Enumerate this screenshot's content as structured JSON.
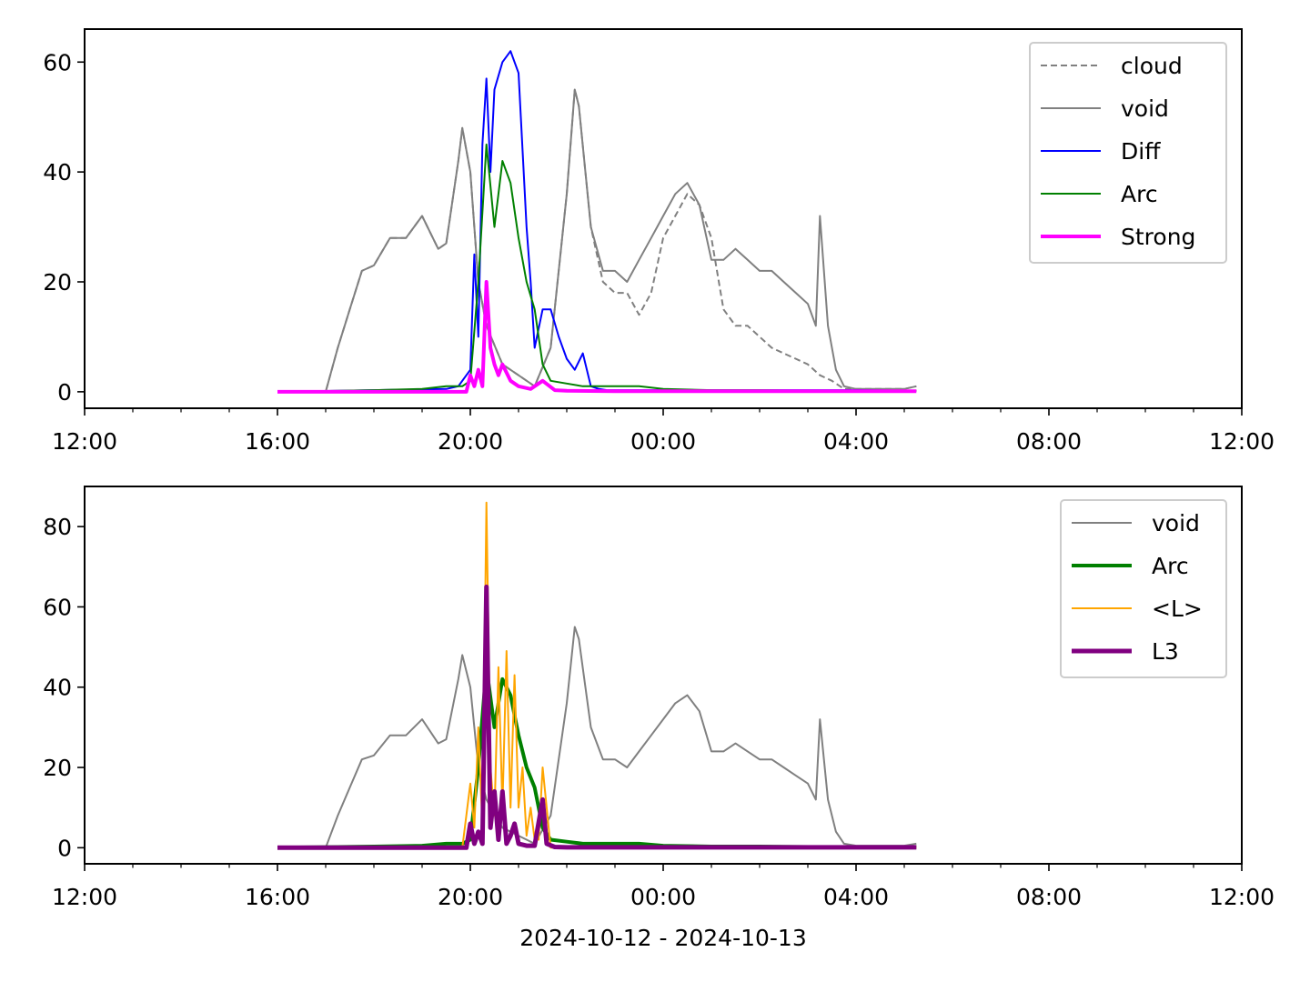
{
  "chart_data": [
    {
      "type": "line",
      "x_axis": {
        "type": "time",
        "range": [
          "2024-10-12T12:00",
          "2024-10-13T12:00"
        ],
        "ticks": [
          "12:00",
          "16:00",
          "20:00",
          "00:00",
          "04:00",
          "08:00",
          "12:00"
        ]
      },
      "y_axis": {
        "ylim": [
          -3,
          66
        ],
        "ticks": [
          "0",
          "20",
          "40",
          "60"
        ]
      },
      "xlabel": "",
      "ylabel": "",
      "grid": false,
      "legend": "top-right",
      "series": [
        {
          "name": "cloud",
          "color": "#808080",
          "style": "dashed",
          "x": [
            "16:00",
            "17:00",
            "17:15",
            "17:30",
            "17:45",
            "18:00",
            "18:20",
            "18:40",
            "19:00",
            "19:20",
            "19:30",
            "19:45",
            "19:50",
            "20:00",
            "20:10",
            "20:20",
            "20:40",
            "21:00",
            "21:20",
            "21:40",
            "22:00",
            "22:10",
            "22:15",
            "22:30",
            "22:45",
            "23:00",
            "23:15",
            "23:30",
            "23:45",
            "00:00",
            "00:15",
            "00:30",
            "00:45",
            "01:00",
            "01:15",
            "01:30",
            "01:45",
            "02:00",
            "02:15",
            "02:30",
            "02:45",
            "03:00",
            "03:15",
            "03:30",
            "03:45",
            "04:00",
            "04:30",
            "05:00",
            "05:15"
          ],
          "y": [
            0,
            0,
            8,
            15,
            22,
            23,
            28,
            28,
            32,
            26,
            27,
            42,
            48,
            40,
            20,
            12,
            5,
            3,
            1,
            8,
            36,
            55,
            52,
            30,
            20,
            18,
            18,
            14,
            18,
            28,
            32,
            36,
            34,
            28,
            15,
            12,
            12,
            10,
            8,
            7,
            6,
            5,
            3,
            2,
            0.5,
            0.5,
            0.5,
            0.5,
            1
          ]
        },
        {
          "name": "void",
          "color": "#808080",
          "style": "solid",
          "x": [
            "16:00",
            "17:00",
            "17:15",
            "17:30",
            "17:45",
            "18:00",
            "18:20",
            "18:40",
            "19:00",
            "19:20",
            "19:30",
            "19:45",
            "19:50",
            "20:00",
            "20:10",
            "20:20",
            "20:40",
            "21:00",
            "21:20",
            "21:40",
            "22:00",
            "22:10",
            "22:15",
            "22:30",
            "22:45",
            "23:00",
            "23:15",
            "23:30",
            "23:45",
            "00:00",
            "00:15",
            "00:30",
            "00:45",
            "01:00",
            "01:15",
            "01:30",
            "01:45",
            "02:00",
            "02:15",
            "02:30",
            "02:45",
            "03:00",
            "03:10",
            "03:15",
            "03:25",
            "03:35",
            "03:45",
            "04:00",
            "04:30",
            "05:00",
            "05:15"
          ],
          "y": [
            0,
            0,
            8,
            15,
            22,
            23,
            28,
            28,
            32,
            26,
            27,
            42,
            48,
            40,
            20,
            12,
            5,
            3,
            1,
            8,
            36,
            55,
            52,
            30,
            22,
            22,
            20,
            24,
            28,
            32,
            36,
            38,
            34,
            24,
            24,
            26,
            24,
            22,
            22,
            20,
            18,
            16,
            12,
            32,
            12,
            4,
            1,
            0.5,
            0.5,
            0.5,
            1
          ]
        },
        {
          "name": "Diff",
          "color": "#0000ff",
          "style": "solid",
          "x": [
            "16:00",
            "19:30",
            "19:45",
            "20:00",
            "20:05",
            "20:10",
            "20:15",
            "20:20",
            "20:25",
            "20:30",
            "20:40",
            "20:50",
            "21:00",
            "21:10",
            "21:15",
            "21:20",
            "21:30",
            "21:40",
            "21:50",
            "22:00",
            "22:10",
            "22:20",
            "22:30",
            "22:40",
            "22:50",
            "23:00",
            "23:30",
            "00:00",
            "01:00",
            "02:00",
            "03:00",
            "04:00",
            "05:15"
          ],
          "y": [
            0,
            0.5,
            1,
            4,
            25,
            10,
            45,
            57,
            40,
            55,
            60,
            62,
            58,
            30,
            20,
            8,
            15,
            15,
            10,
            6,
            4,
            7,
            1,
            0.5,
            0.3,
            0.3,
            0.3,
            0.3,
            0.3,
            0.3,
            0.3,
            0.3,
            0.2
          ]
        },
        {
          "name": "Arc",
          "color": "#008000",
          "style": "solid",
          "x": [
            "16:00",
            "18:00",
            "19:00",
            "19:30",
            "19:50",
            "20:00",
            "20:10",
            "20:20",
            "20:30",
            "20:40",
            "20:50",
            "21:00",
            "21:10",
            "21:20",
            "21:30",
            "21:40",
            "22:00",
            "22:20",
            "22:40",
            "23:00",
            "23:30",
            "00:00",
            "01:00",
            "02:00",
            "03:00",
            "04:00",
            "05:15"
          ],
          "y": [
            0,
            0.3,
            0.5,
            1,
            1,
            2,
            20,
            45,
            30,
            42,
            38,
            28,
            20,
            15,
            5,
            2,
            1.5,
            1,
            1,
            1,
            1,
            0.5,
            0.3,
            0.3,
            0.2,
            0.2,
            0.2
          ]
        },
        {
          "name": "Strong",
          "color": "#ff00ff",
          "style": "solid",
          "x": [
            "16:00",
            "19:55",
            "20:00",
            "20:05",
            "20:10",
            "20:15",
            "20:20",
            "20:25",
            "20:30",
            "20:35",
            "20:40",
            "20:50",
            "21:00",
            "21:15",
            "21:30",
            "21:45",
            "22:00",
            "23:00",
            "00:00",
            "02:00",
            "04:00",
            "05:15"
          ],
          "y": [
            0,
            0,
            3,
            1,
            4,
            1,
            20,
            8,
            5,
            3,
            5,
            2,
            1,
            0.5,
            2,
            0.3,
            0.2,
            0.1,
            0.1,
            0.1,
            0.1,
            0.1
          ]
        }
      ]
    },
    {
      "type": "line",
      "x_axis": {
        "type": "time",
        "range": [
          "2024-10-12T12:00",
          "2024-10-13T12:00"
        ],
        "ticks": [
          "12:00",
          "16:00",
          "20:00",
          "00:00",
          "04:00",
          "08:00",
          "12:00"
        ]
      },
      "y_axis": {
        "ylim": [
          -4,
          90
        ],
        "ticks": [
          "0",
          "20",
          "40",
          "60",
          "80"
        ]
      },
      "xlabel": "2024-10-12 - 2024-10-13",
      "ylabel": "",
      "grid": false,
      "legend": "top-right",
      "series": [
        {
          "name": "void",
          "color": "#808080",
          "style": "solid",
          "x": [
            "16:00",
            "17:00",
            "17:15",
            "17:30",
            "17:45",
            "18:00",
            "18:20",
            "18:40",
            "19:00",
            "19:20",
            "19:30",
            "19:45",
            "19:50",
            "20:00",
            "20:10",
            "20:20",
            "20:40",
            "21:00",
            "21:20",
            "21:40",
            "22:00",
            "22:10",
            "22:15",
            "22:30",
            "22:45",
            "23:00",
            "23:15",
            "23:30",
            "23:45",
            "00:00",
            "00:15",
            "00:30",
            "00:45",
            "01:00",
            "01:15",
            "01:30",
            "01:45",
            "02:00",
            "02:15",
            "02:30",
            "02:45",
            "03:00",
            "03:10",
            "03:15",
            "03:25",
            "03:35",
            "03:45",
            "04:00",
            "04:30",
            "05:00",
            "05:15"
          ],
          "y": [
            0,
            0,
            8,
            15,
            22,
            23,
            28,
            28,
            32,
            26,
            27,
            42,
            48,
            40,
            20,
            12,
            5,
            3,
            1,
            8,
            36,
            55,
            52,
            30,
            22,
            22,
            20,
            24,
            28,
            32,
            36,
            38,
            34,
            24,
            24,
            26,
            24,
            22,
            22,
            20,
            18,
            16,
            12,
            32,
            12,
            4,
            1,
            0.5,
            0.5,
            0.5,
            1
          ]
        },
        {
          "name": "Arc",
          "color": "#008000",
          "style": "solid",
          "x": [
            "16:00",
            "18:00",
            "19:00",
            "19:30",
            "19:50",
            "20:00",
            "20:10",
            "20:20",
            "20:30",
            "20:40",
            "20:50",
            "21:00",
            "21:10",
            "21:20",
            "21:30",
            "21:40",
            "22:00",
            "22:20",
            "22:40",
            "23:00",
            "23:30",
            "00:00",
            "01:00",
            "02:00",
            "03:00",
            "04:00",
            "05:15"
          ],
          "y": [
            0,
            0.3,
            0.5,
            1,
            1,
            2,
            20,
            45,
            30,
            42,
            38,
            28,
            20,
            15,
            5,
            2,
            1.5,
            1,
            1,
            1,
            1,
            0.5,
            0.3,
            0.3,
            0.2,
            0.2,
            0.2
          ]
        },
        {
          "name": "<L>",
          "color": "#ffa500",
          "style": "solid",
          "x": [
            "16:00",
            "19:50",
            "20:00",
            "20:05",
            "20:10",
            "20:15",
            "20:20",
            "20:25",
            "20:30",
            "20:35",
            "20:40",
            "20:45",
            "20:50",
            "20:55",
            "21:00",
            "21:05",
            "21:10",
            "21:15",
            "21:20",
            "21:25",
            "21:30",
            "21:40",
            "22:00",
            "05:15"
          ],
          "y": [
            0,
            0,
            16,
            5,
            30,
            5,
            86,
            20,
            8,
            45,
            10,
            49,
            10,
            43,
            10,
            20,
            3,
            10,
            2,
            2,
            20,
            0,
            0,
            0
          ]
        },
        {
          "name": "L3",
          "color": "#800080",
          "style": "solid",
          "x": [
            "16:00",
            "19:55",
            "20:00",
            "20:05",
            "20:10",
            "20:15",
            "20:20",
            "20:25",
            "20:30",
            "20:35",
            "20:40",
            "20:45",
            "20:50",
            "20:55",
            "21:00",
            "21:10",
            "21:20",
            "21:30",
            "21:35",
            "21:45",
            "22:00",
            "05:15"
          ],
          "y": [
            0,
            0,
            6,
            1,
            4,
            1,
            65,
            5,
            14,
            2,
            14,
            1,
            3,
            6,
            1,
            0.5,
            0.5,
            12,
            1,
            0.2,
            0.1,
            0.1
          ]
        }
      ]
    }
  ]
}
